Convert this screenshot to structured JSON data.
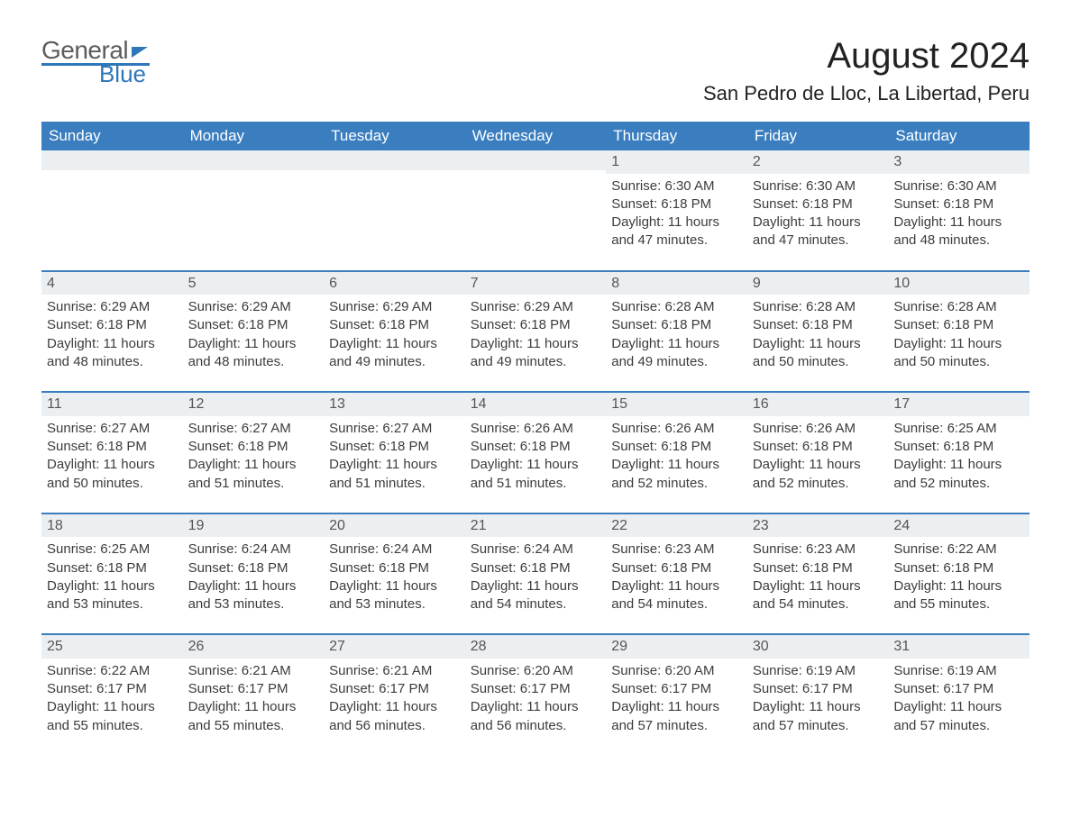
{
  "logo": {
    "text_general": "General",
    "text_blue": "Blue"
  },
  "title": "August 2024",
  "location": "San Pedro de Lloc, La Libertad, Peru",
  "colors": {
    "header_bg": "#3a7ebf",
    "header_text": "#ffffff",
    "daynum_bg": "#eceff1",
    "body_text": "#3c3c3c",
    "row_divider": "#3a7ebf",
    "logo_gray": "#5c5c5c",
    "logo_blue": "#2e77b8",
    "page_bg": "#ffffff"
  },
  "typography": {
    "title_fontsize": 40,
    "location_fontsize": 22,
    "header_fontsize": 17,
    "daynum_fontsize": 16,
    "body_fontsize": 15,
    "font_family": "Arial"
  },
  "layout": {
    "columns": 7,
    "rows": 5,
    "first_weekday_index": 4
  },
  "weekdays": [
    "Sunday",
    "Monday",
    "Tuesday",
    "Wednesday",
    "Thursday",
    "Friday",
    "Saturday"
  ],
  "days": [
    {
      "n": 1,
      "sunrise": "6:30 AM",
      "sunset": "6:18 PM",
      "daylight": "11 hours and 47 minutes."
    },
    {
      "n": 2,
      "sunrise": "6:30 AM",
      "sunset": "6:18 PM",
      "daylight": "11 hours and 47 minutes."
    },
    {
      "n": 3,
      "sunrise": "6:30 AM",
      "sunset": "6:18 PM",
      "daylight": "11 hours and 48 minutes."
    },
    {
      "n": 4,
      "sunrise": "6:29 AM",
      "sunset": "6:18 PM",
      "daylight": "11 hours and 48 minutes."
    },
    {
      "n": 5,
      "sunrise": "6:29 AM",
      "sunset": "6:18 PM",
      "daylight": "11 hours and 48 minutes."
    },
    {
      "n": 6,
      "sunrise": "6:29 AM",
      "sunset": "6:18 PM",
      "daylight": "11 hours and 49 minutes."
    },
    {
      "n": 7,
      "sunrise": "6:29 AM",
      "sunset": "6:18 PM",
      "daylight": "11 hours and 49 minutes."
    },
    {
      "n": 8,
      "sunrise": "6:28 AM",
      "sunset": "6:18 PM",
      "daylight": "11 hours and 49 minutes."
    },
    {
      "n": 9,
      "sunrise": "6:28 AM",
      "sunset": "6:18 PM",
      "daylight": "11 hours and 50 minutes."
    },
    {
      "n": 10,
      "sunrise": "6:28 AM",
      "sunset": "6:18 PM",
      "daylight": "11 hours and 50 minutes."
    },
    {
      "n": 11,
      "sunrise": "6:27 AM",
      "sunset": "6:18 PM",
      "daylight": "11 hours and 50 minutes."
    },
    {
      "n": 12,
      "sunrise": "6:27 AM",
      "sunset": "6:18 PM",
      "daylight": "11 hours and 51 minutes."
    },
    {
      "n": 13,
      "sunrise": "6:27 AM",
      "sunset": "6:18 PM",
      "daylight": "11 hours and 51 minutes."
    },
    {
      "n": 14,
      "sunrise": "6:26 AM",
      "sunset": "6:18 PM",
      "daylight": "11 hours and 51 minutes."
    },
    {
      "n": 15,
      "sunrise": "6:26 AM",
      "sunset": "6:18 PM",
      "daylight": "11 hours and 52 minutes."
    },
    {
      "n": 16,
      "sunrise": "6:26 AM",
      "sunset": "6:18 PM",
      "daylight": "11 hours and 52 minutes."
    },
    {
      "n": 17,
      "sunrise": "6:25 AM",
      "sunset": "6:18 PM",
      "daylight": "11 hours and 52 minutes."
    },
    {
      "n": 18,
      "sunrise": "6:25 AM",
      "sunset": "6:18 PM",
      "daylight": "11 hours and 53 minutes."
    },
    {
      "n": 19,
      "sunrise": "6:24 AM",
      "sunset": "6:18 PM",
      "daylight": "11 hours and 53 minutes."
    },
    {
      "n": 20,
      "sunrise": "6:24 AM",
      "sunset": "6:18 PM",
      "daylight": "11 hours and 53 minutes."
    },
    {
      "n": 21,
      "sunrise": "6:24 AM",
      "sunset": "6:18 PM",
      "daylight": "11 hours and 54 minutes."
    },
    {
      "n": 22,
      "sunrise": "6:23 AM",
      "sunset": "6:18 PM",
      "daylight": "11 hours and 54 minutes."
    },
    {
      "n": 23,
      "sunrise": "6:23 AM",
      "sunset": "6:18 PM",
      "daylight": "11 hours and 54 minutes."
    },
    {
      "n": 24,
      "sunrise": "6:22 AM",
      "sunset": "6:18 PM",
      "daylight": "11 hours and 55 minutes."
    },
    {
      "n": 25,
      "sunrise": "6:22 AM",
      "sunset": "6:17 PM",
      "daylight": "11 hours and 55 minutes."
    },
    {
      "n": 26,
      "sunrise": "6:21 AM",
      "sunset": "6:17 PM",
      "daylight": "11 hours and 55 minutes."
    },
    {
      "n": 27,
      "sunrise": "6:21 AM",
      "sunset": "6:17 PM",
      "daylight": "11 hours and 56 minutes."
    },
    {
      "n": 28,
      "sunrise": "6:20 AM",
      "sunset": "6:17 PM",
      "daylight": "11 hours and 56 minutes."
    },
    {
      "n": 29,
      "sunrise": "6:20 AM",
      "sunset": "6:17 PM",
      "daylight": "11 hours and 57 minutes."
    },
    {
      "n": 30,
      "sunrise": "6:19 AM",
      "sunset": "6:17 PM",
      "daylight": "11 hours and 57 minutes."
    },
    {
      "n": 31,
      "sunrise": "6:19 AM",
      "sunset": "6:17 PM",
      "daylight": "11 hours and 57 minutes."
    }
  ],
  "labels": {
    "sunrise": "Sunrise:",
    "sunset": "Sunset:",
    "daylight": "Daylight:"
  }
}
